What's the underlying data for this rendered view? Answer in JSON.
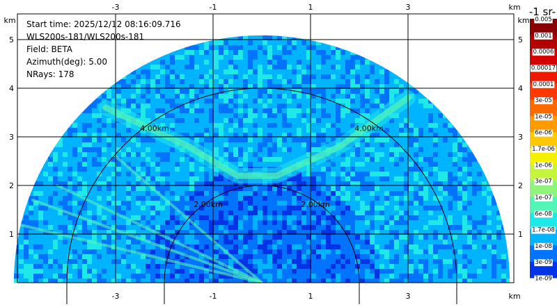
{
  "chart_data": {
    "type": "heatmap",
    "title": "",
    "info": {
      "start_time": "Start time: 2025/12/12 08:16:09.716",
      "station": "WLS200s-181/WLS200s-181",
      "field": "Field: BETA",
      "azimuth": "Azimuth(deg): 5.00",
      "nrays": "NRays: 178"
    },
    "x_unit": "km",
    "y_unit": "km",
    "x_ticks": [
      -3,
      -1,
      1,
      3
    ],
    "y_ticks": [
      1,
      2,
      3,
      4,
      5
    ],
    "xlim": [
      -5.4,
      5.0
    ],
    "ylim": [
      0,
      5.9
    ],
    "sector_radius_km": 5.0,
    "range_rings": [
      {
        "radius_km": 2.0,
        "label": "2.00km"
      },
      {
        "radius_km": 4.0,
        "label": "4.00km"
      }
    ],
    "colorbar": {
      "unit_label": "-1 sr-",
      "levels": [
        "0.005",
        "0.001",
        "0.0006",
        "0.00017",
        "0.0001",
        "3e-05",
        "1e-05",
        "6e-06",
        "1.7e-06",
        "1e-06",
        "3e-07",
        "1e-07",
        "6e-08",
        "1.7e-08",
        "1e-08",
        "3e-09",
        "1e-09"
      ],
      "colors": [
        "#8a0000",
        "#b30000",
        "#d50000",
        "#ee1a00",
        "#ff3800",
        "#ff6a00",
        "#ff9a00",
        "#ffc800",
        "#f5f000",
        "#c4f53c",
        "#8ef57a",
        "#52f5b6",
        "#1fe8e8",
        "#00b4ff",
        "#0074ff",
        "#0034e6",
        "#000a9a"
      ]
    }
  }
}
